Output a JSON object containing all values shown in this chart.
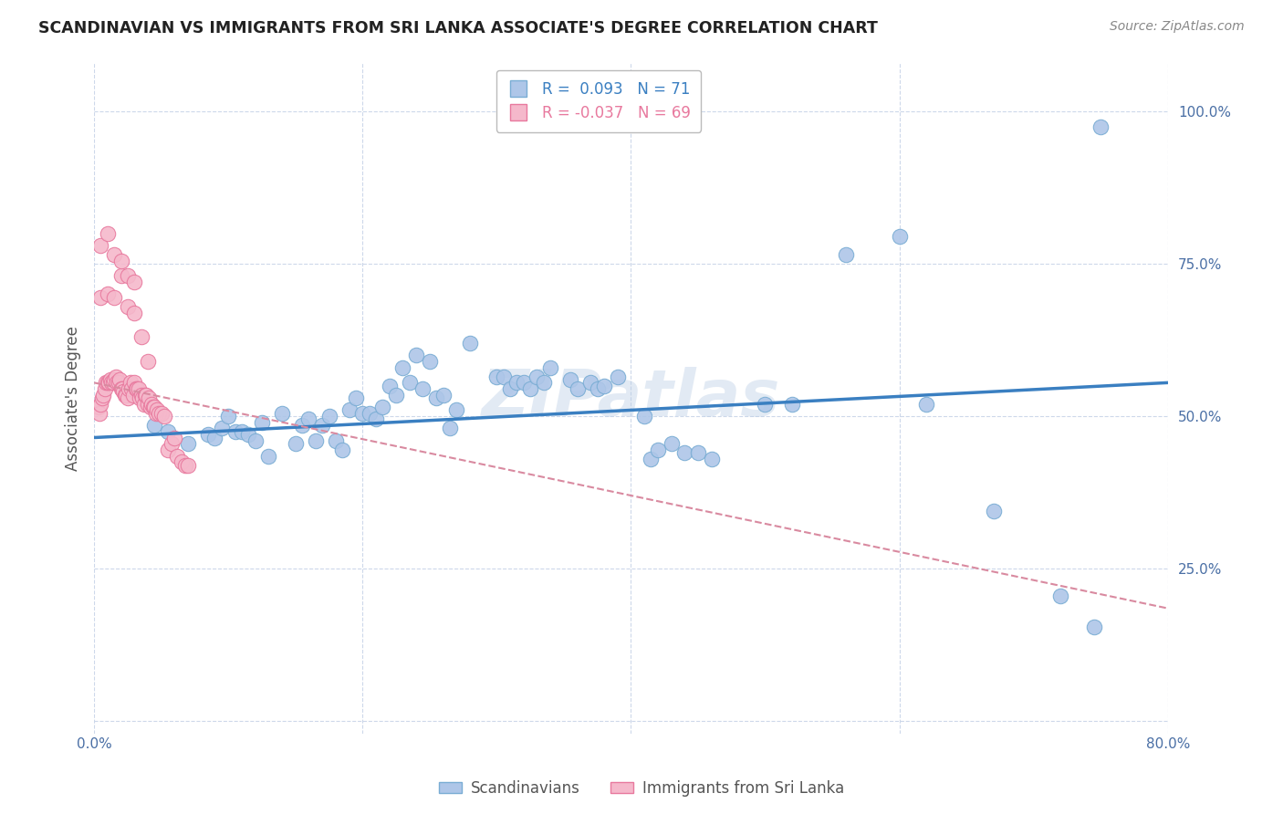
{
  "title": "SCANDINAVIAN VS IMMIGRANTS FROM SRI LANKA ASSOCIATE'S DEGREE CORRELATION CHART",
  "source": "Source: ZipAtlas.com",
  "ylabel": "Associate's Degree",
  "xlim": [
    0.0,
    0.8
  ],
  "ylim": [
    -0.02,
    1.08
  ],
  "legend_label_blue": "Scandinavians",
  "legend_label_pink": "Immigrants from Sri Lanka",
  "R_blue": 0.093,
  "N_blue": 71,
  "R_pink": -0.037,
  "N_pink": 69,
  "blue_color": "#aec6e8",
  "blue_edge_color": "#7aadd4",
  "pink_color": "#f5b8cb",
  "pink_edge_color": "#e8799e",
  "blue_line_color": "#3a7fc1",
  "pink_line_color": "#d98aa0",
  "grid_color": "#c8d4e8",
  "watermark": "ZIPatlas",
  "blue_trend": [
    0.0,
    0.8,
    0.465,
    0.555
  ],
  "pink_trend": [
    0.0,
    0.8,
    0.555,
    0.185
  ],
  "blue_x": [
    0.045,
    0.055,
    0.07,
    0.085,
    0.09,
    0.095,
    0.1,
    0.105,
    0.11,
    0.115,
    0.12,
    0.125,
    0.13,
    0.14,
    0.15,
    0.155,
    0.16,
    0.165,
    0.17,
    0.175,
    0.18,
    0.185,
    0.19,
    0.195,
    0.2,
    0.205,
    0.21,
    0.215,
    0.22,
    0.225,
    0.23,
    0.235,
    0.24,
    0.245,
    0.25,
    0.255,
    0.26,
    0.265,
    0.27,
    0.28,
    0.3,
    0.305,
    0.31,
    0.315,
    0.32,
    0.325,
    0.33,
    0.335,
    0.34,
    0.355,
    0.36,
    0.37,
    0.375,
    0.38,
    0.39,
    0.41,
    0.415,
    0.42,
    0.43,
    0.44,
    0.45,
    0.46,
    0.5,
    0.52,
    0.56,
    0.6,
    0.62,
    0.67,
    0.72,
    0.745,
    0.75
  ],
  "blue_y": [
    0.485,
    0.475,
    0.455,
    0.47,
    0.465,
    0.48,
    0.5,
    0.475,
    0.475,
    0.47,
    0.46,
    0.49,
    0.435,
    0.505,
    0.455,
    0.485,
    0.495,
    0.46,
    0.485,
    0.5,
    0.46,
    0.445,
    0.51,
    0.53,
    0.505,
    0.505,
    0.495,
    0.515,
    0.55,
    0.535,
    0.58,
    0.555,
    0.6,
    0.545,
    0.59,
    0.53,
    0.535,
    0.48,
    0.51,
    0.62,
    0.565,
    0.565,
    0.545,
    0.555,
    0.555,
    0.545,
    0.565,
    0.555,
    0.58,
    0.56,
    0.545,
    0.555,
    0.545,
    0.55,
    0.565,
    0.5,
    0.43,
    0.445,
    0.455,
    0.44,
    0.44,
    0.43,
    0.52,
    0.52,
    0.765,
    0.795,
    0.52,
    0.345,
    0.205,
    0.155,
    0.975
  ],
  "pink_x": [
    0.003,
    0.004,
    0.005,
    0.006,
    0.007,
    0.008,
    0.009,
    0.01,
    0.011,
    0.012,
    0.013,
    0.014,
    0.015,
    0.016,
    0.017,
    0.018,
    0.019,
    0.02,
    0.021,
    0.022,
    0.023,
    0.024,
    0.025,
    0.026,
    0.027,
    0.028,
    0.029,
    0.03,
    0.031,
    0.032,
    0.033,
    0.034,
    0.035,
    0.036,
    0.037,
    0.038,
    0.039,
    0.04,
    0.041,
    0.042,
    0.043,
    0.044,
    0.045,
    0.046,
    0.047,
    0.048,
    0.05,
    0.052,
    0.055,
    0.058,
    0.06,
    0.062,
    0.065,
    0.068,
    0.07,
    0.005,
    0.01,
    0.015,
    0.02,
    0.025,
    0.03,
    0.035,
    0.04,
    0.005,
    0.01,
    0.015,
    0.02,
    0.025,
    0.03
  ],
  "pink_y": [
    0.515,
    0.505,
    0.52,
    0.53,
    0.535,
    0.545,
    0.555,
    0.555,
    0.555,
    0.56,
    0.555,
    0.555,
    0.56,
    0.565,
    0.555,
    0.555,
    0.56,
    0.545,
    0.545,
    0.54,
    0.535,
    0.535,
    0.53,
    0.545,
    0.555,
    0.545,
    0.535,
    0.555,
    0.545,
    0.545,
    0.545,
    0.53,
    0.535,
    0.53,
    0.52,
    0.535,
    0.535,
    0.52,
    0.53,
    0.515,
    0.52,
    0.515,
    0.515,
    0.505,
    0.51,
    0.505,
    0.505,
    0.5,
    0.445,
    0.455,
    0.465,
    0.435,
    0.425,
    0.42,
    0.42,
    0.695,
    0.7,
    0.695,
    0.73,
    0.68,
    0.67,
    0.63,
    0.59,
    0.78,
    0.8,
    0.765,
    0.755,
    0.73,
    0.72
  ]
}
